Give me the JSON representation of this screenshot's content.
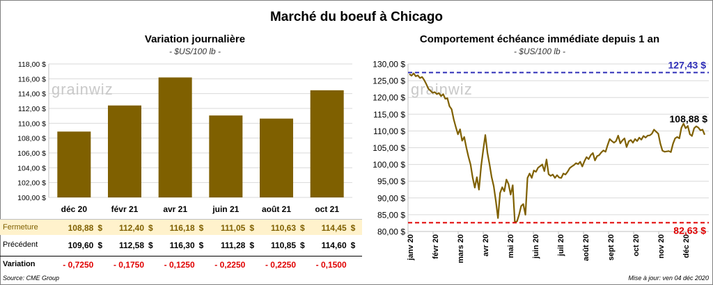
{
  "title": "Marché du boeuf à Chicago",
  "left": {
    "subtitle": "Variation journalière",
    "unit": "- $US/100 lb -",
    "watermark": "grainwiz"
  },
  "right": {
    "subtitle": "Comportement échéance immédiate depuis 1 an",
    "unit": "- $US/100 lb -",
    "watermark": "grainwiz"
  },
  "colors": {
    "bar": "#7f6000",
    "line": "#7f6000",
    "high": "#2e2eb8",
    "low": "#e00000",
    "fermeture_bg": "#fff2cc",
    "neg": "#e00000"
  },
  "table": {
    "currency": "$",
    "fermeture_label": "Fermeture",
    "precedent_label": "Précédent",
    "variation_label": "Variation",
    "fermeture": [
      "108,88",
      "112,40",
      "116,18",
      "111,05",
      "110,63",
      "114,45"
    ],
    "precedent": [
      "109,60",
      "112,58",
      "116,30",
      "111,28",
      "110,85",
      "114,60"
    ],
    "variation": [
      "- 0,7250",
      "- 0,1750",
      "- 0,1250",
      "- 0,2250",
      "- 0,2250",
      "- 0,1500"
    ]
  },
  "footer": {
    "source": "Source: CME Group",
    "updated": "Mise à jour: ven 04 déc 2020"
  },
  "chart_data": [
    {
      "type": "bar",
      "categories": [
        "déc 20",
        "févr 21",
        "avr 21",
        "juin 21",
        "août 21",
        "oct 21"
      ],
      "values": [
        108.88,
        112.4,
        116.18,
        111.05,
        110.63,
        114.45
      ],
      "ylim": [
        100,
        118
      ],
      "yticks": [
        "100,00 $",
        "102,00 $",
        "104,00 $",
        "106,00 $",
        "108,00 $",
        "110,00 $",
        "112,00 $",
        "114,00 $",
        "116,00 $",
        "118,00 $"
      ]
    },
    {
      "type": "line",
      "ylim": [
        80,
        130
      ],
      "yticks": [
        "80,00 $",
        "85,00 $",
        "90,00 $",
        "95,00 $",
        "100,00 $",
        "105,00 $",
        "110,00 $",
        "115,00 $",
        "120,00 $",
        "125,00 $",
        "130,00 $"
      ],
      "xticks": [
        "janv 20",
        "févr 20",
        "mars 20",
        "avr 20",
        "mai 20",
        "juin 20",
        "juil 20",
        "août 20",
        "sept 20",
        "oct 20",
        "nov 20",
        "déc 20"
      ],
      "high": 127.43,
      "high_label": "127,43 $",
      "low": 82.63,
      "low_label": "82,63 $",
      "last_label": "108,88 $",
      "series": [
        {
          "values": [
            127.0,
            126.5,
            127.2,
            126.3,
            126.6,
            125.8,
            126.1,
            125.2,
            124.0,
            122.6,
            122.0,
            121.4,
            121.6,
            121.0,
            121.3,
            120.4,
            121.0,
            119.6,
            119.8,
            117.4,
            116.5,
            113.5,
            111.2,
            109.0,
            110.5,
            107.1,
            108.2,
            105.0,
            102.3,
            100.0,
            96.0,
            93.1,
            96.2,
            92.5,
            99.5,
            104.3,
            108.8,
            103.4,
            100.0,
            96.2,
            93.5,
            89.0,
            84.0,
            91.5,
            93.2,
            92.0,
            95.5,
            94.2,
            91.0,
            93.8,
            82.8,
            83.0,
            85.0,
            87.6,
            88.2,
            85.0,
            96.0,
            97.3,
            96.0,
            98.2,
            97.8,
            99.0,
            99.5,
            100.0,
            98.0,
            101.5,
            97.1,
            96.6,
            97.0,
            96.0,
            96.8,
            96.1,
            96.0,
            97.3,
            97.0,
            97.8,
            98.9,
            99.4,
            99.8,
            100.4,
            100.1,
            100.8,
            99.4,
            101.0,
            102.2,
            101.6,
            102.8,
            103.4,
            101.2,
            102.5,
            102.8,
            103.6,
            104.2,
            103.8,
            105.8,
            107.6,
            107.0,
            106.5,
            107.0,
            108.6,
            106.3,
            107.2,
            107.8,
            105.2,
            106.9,
            107.3,
            106.5,
            107.6,
            107.0,
            108.0,
            107.4,
            108.5,
            108.0,
            108.6,
            108.7,
            109.2,
            110.4,
            109.8,
            109.2,
            106.2,
            104.1,
            103.8,
            103.9,
            104.0,
            103.7,
            106.2,
            107.8,
            108.2,
            107.8,
            111.0,
            112.2,
            110.8,
            111.5,
            109.0,
            108.5,
            110.8,
            111.4,
            111.0,
            110.2,
            110.4,
            108.88
          ]
        }
      ]
    }
  ]
}
